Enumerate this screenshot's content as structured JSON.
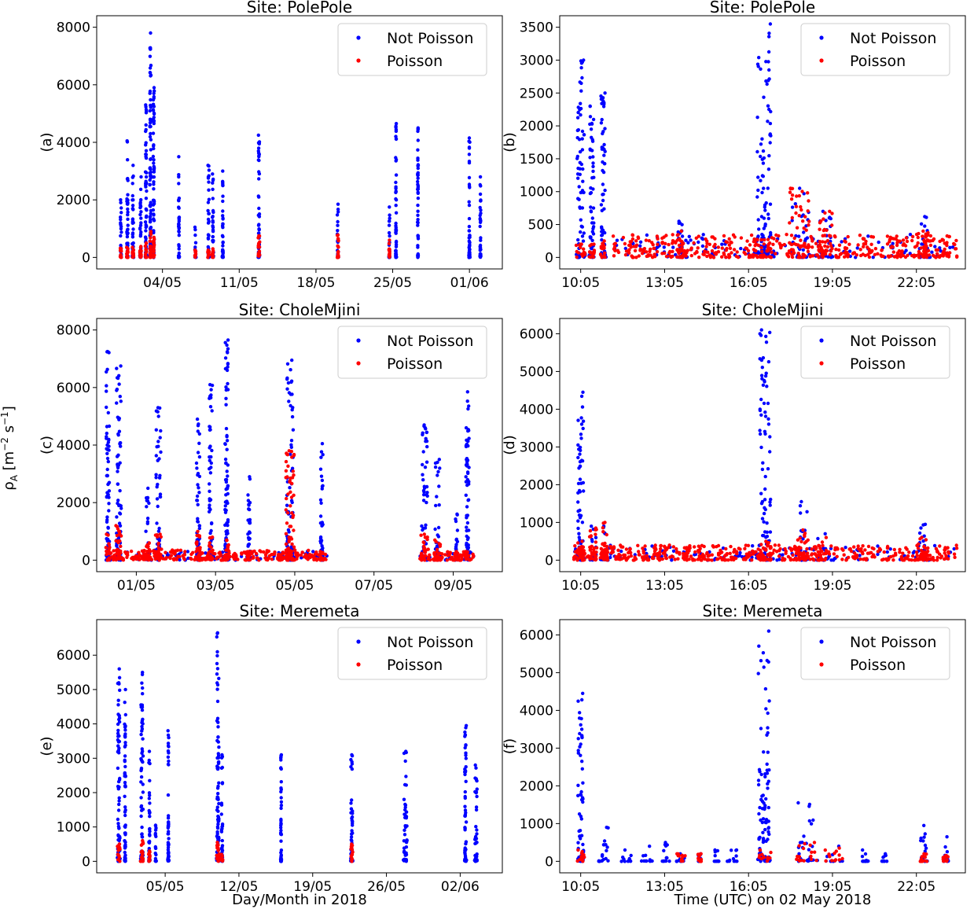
{
  "figure": {
    "shared_ylabel": "ρ_A [m⁻² s⁻¹]",
    "shared_ylabel_parts": {
      "symbol": "ρ",
      "subscript": "A",
      "unit_open": " [m",
      "exp1": "−2",
      "unit_mid": " s",
      "exp2": "−1",
      "unit_close": "]"
    },
    "xlabel_left": "Day/Month in 2018",
    "xlabel_right": "Time (UTC) on 02 May 2018"
  },
  "colors": {
    "not_poisson": "#0000ff",
    "poisson": "#ff0000"
  },
  "chart_data": [
    {
      "id": "a",
      "type": "scatter",
      "title": "Site: PolePole",
      "panel_label": "(a)",
      "xlim": [
        0,
        37
      ],
      "ylim": [
        -400,
        8400
      ],
      "yticks": [
        0,
        2000,
        4000,
        6000,
        8000
      ],
      "xticks": [
        {
          "x": 6,
          "label": "04/05"
        },
        {
          "x": 13,
          "label": "11/05"
        },
        {
          "x": 20,
          "label": "18/05"
        },
        {
          "x": 27,
          "label": "25/05"
        },
        {
          "x": 34,
          "label": "01/06"
        }
      ],
      "legend": {
        "position": "top-right",
        "entries": [
          "Not Poisson",
          "Poisson"
        ]
      },
      "clusters": [
        {
          "x": 2.2,
          "w": 0.1,
          "max": 2000,
          "pmax": 320
        },
        {
          "x": 2.8,
          "w": 0.1,
          "max": 4050,
          "pmax": 350
        },
        {
          "x": 3.3,
          "w": 0.1,
          "max": 3200,
          "pmax": 350
        },
        {
          "x": 4.0,
          "w": 0.1,
          "max": 2800,
          "pmax": 380
        },
        {
          "x": 4.5,
          "w": 0.1,
          "max": 5300,
          "pmax": 500
        },
        {
          "x": 4.9,
          "w": 0.1,
          "max": 7800,
          "pmax": 900
        },
        {
          "x": 5.2,
          "w": 0.1,
          "max": 5900,
          "pmax": 700
        },
        {
          "x": 7.5,
          "w": 0.06,
          "max": 3500,
          "pmax": 0
        },
        {
          "x": 9.0,
          "w": 0.08,
          "max": 1050,
          "pmax": 250
        },
        {
          "x": 10.2,
          "w": 0.1,
          "max": 3200,
          "pmax": 250
        },
        {
          "x": 10.6,
          "w": 0.1,
          "max": 2900,
          "pmax": 300
        },
        {
          "x": 11.5,
          "w": 0.06,
          "max": 3000,
          "pmax": 0
        },
        {
          "x": 14.8,
          "w": 0.1,
          "max": 4250,
          "pmax": 750
        },
        {
          "x": 22.0,
          "w": 0.1,
          "max": 1850,
          "pmax": 780
        },
        {
          "x": 26.7,
          "w": 0.06,
          "max": 1750,
          "pmax": 600
        },
        {
          "x": 27.3,
          "w": 0.06,
          "max": 4650,
          "pmax": 0
        },
        {
          "x": 29.3,
          "w": 0.06,
          "max": 4500,
          "pmax": 0
        },
        {
          "x": 34.0,
          "w": 0.08,
          "max": 4150,
          "pmax": 0
        },
        {
          "x": 35.0,
          "w": 0.06,
          "max": 2800,
          "pmax": 0
        }
      ]
    },
    {
      "id": "b",
      "type": "scatter",
      "title": "Site: PolePole",
      "panel_label": "(b)",
      "xlim": [
        0,
        14.5
      ],
      "ylim": [
        -175,
        3675
      ],
      "yticks": [
        0,
        500,
        1000,
        1500,
        2000,
        2500,
        3000,
        3500
      ],
      "xticks": [
        {
          "x": 0.75,
          "label": "10:05"
        },
        {
          "x": 3.75,
          "label": "13:05"
        },
        {
          "x": 6.75,
          "label": "16:05"
        },
        {
          "x": 9.75,
          "label": "19:05"
        },
        {
          "x": 12.75,
          "label": "22:05"
        }
      ],
      "legend": {
        "position": "top-right",
        "entries": [
          "Not Poisson",
          "Poisson"
        ]
      },
      "clusters": [
        {
          "x": 0.75,
          "w": 0.25,
          "max": 3000,
          "pmax": 200
        },
        {
          "x": 1.15,
          "w": 0.15,
          "max": 2300,
          "pmax": 200
        },
        {
          "x": 1.55,
          "w": 0.15,
          "max": 2500,
          "pmax": 250
        },
        {
          "x": 4.3,
          "w": 0.15,
          "max": 550,
          "pmax": 400
        },
        {
          "x": 7.3,
          "w": 0.5,
          "max": 3550,
          "pmax": 300
        },
        {
          "x": 8.6,
          "w": 0.6,
          "max": 1050,
          "pmax": 1050
        },
        {
          "x": 9.5,
          "w": 0.4,
          "max": 700,
          "pmax": 700
        },
        {
          "x": 13.0,
          "w": 0.3,
          "max": 620,
          "pmax": 400
        }
      ],
      "band": {
        "x0": 1.9,
        "x1": 14.2,
        "pmax": 350
      }
    },
    {
      "id": "c",
      "type": "scatter",
      "title": "Site: CholeMjini",
      "panel_label": "(c)",
      "xlim": [
        0,
        12.8
      ],
      "ylim": [
        -400,
        8400
      ],
      "yticks": [
        0,
        2000,
        4000,
        6000,
        8000
      ],
      "xticks": [
        {
          "x": 1.25,
          "label": "01/05"
        },
        {
          "x": 3.75,
          "label": "03/05"
        },
        {
          "x": 6.25,
          "label": "05/05"
        },
        {
          "x": 8.75,
          "label": "07/05"
        },
        {
          "x": 11.25,
          "label": "09/05"
        }
      ],
      "legend": {
        "position": "top-right",
        "entries": [
          "Not Poisson",
          "Poisson"
        ]
      },
      "clusters": [
        {
          "x": 0.35,
          "w": 0.1,
          "max": 7250,
          "pmax": 900
        },
        {
          "x": 0.7,
          "w": 0.15,
          "max": 6750,
          "pmax": 1200
        },
        {
          "x": 1.6,
          "w": 0.1,
          "max": 2500,
          "pmax": 600
        },
        {
          "x": 1.95,
          "w": 0.15,
          "max": 5300,
          "pmax": 900
        },
        {
          "x": 3.2,
          "w": 0.1,
          "max": 4900,
          "pmax": 1000
        },
        {
          "x": 3.6,
          "w": 0.1,
          "max": 6100,
          "pmax": 800
        },
        {
          "x": 4.1,
          "w": 0.1,
          "max": 7650,
          "pmax": 700
        },
        {
          "x": 4.8,
          "w": 0.08,
          "max": 2900,
          "pmax": 300
        },
        {
          "x": 6.1,
          "w": 0.2,
          "max": 6950,
          "pmax": 3800
        },
        {
          "x": 7.1,
          "w": 0.08,
          "max": 4050,
          "pmax": 300
        },
        {
          "x": 10.35,
          "w": 0.2,
          "max": 4700,
          "pmax": 900
        },
        {
          "x": 10.75,
          "w": 0.15,
          "max": 3500,
          "pmax": 700
        },
        {
          "x": 11.35,
          "w": 0.1,
          "max": 1600,
          "pmax": 300
        },
        {
          "x": 11.7,
          "w": 0.1,
          "max": 5850,
          "pmax": 300
        }
      ],
      "bands": [
        {
          "x0": 0.3,
          "x1": 7.3,
          "pmax": 350
        },
        {
          "x0": 10.2,
          "x1": 11.9,
          "pmax": 300
        }
      ]
    },
    {
      "id": "d",
      "type": "scatter",
      "title": "Site: CholeMjini",
      "panel_label": "(d)",
      "xlim": [
        0,
        14.5
      ],
      "ylim": [
        -305,
        6405
      ],
      "yticks": [
        0,
        1000,
        2000,
        3000,
        4000,
        5000,
        6000
      ],
      "xticks": [
        {
          "x": 0.75,
          "label": "10:05"
        },
        {
          "x": 3.75,
          "label": "13:05"
        },
        {
          "x": 6.75,
          "label": "16:05"
        },
        {
          "x": 9.75,
          "label": "19:05"
        },
        {
          "x": 12.75,
          "label": "22:05"
        }
      ],
      "legend": {
        "position": "top-right",
        "entries": [
          "Not Poisson",
          "Poisson"
        ]
      },
      "clusters": [
        {
          "x": 0.75,
          "w": 0.2,
          "max": 4450,
          "pmax": 500
        },
        {
          "x": 1.2,
          "w": 0.2,
          "max": 900,
          "pmax": 850
        },
        {
          "x": 1.6,
          "w": 0.2,
          "max": 900,
          "pmax": 1000
        },
        {
          "x": 7.35,
          "w": 0.4,
          "max": 6100,
          "pmax": 500
        },
        {
          "x": 8.7,
          "w": 0.3,
          "max": 1550,
          "pmax": 800
        },
        {
          "x": 9.3,
          "w": 0.4,
          "max": 700,
          "pmax": 600
        },
        {
          "x": 13.0,
          "w": 0.3,
          "max": 950,
          "pmax": 600
        }
      ],
      "band": {
        "x0": 0.5,
        "x1": 14.2,
        "pmax": 400
      }
    },
    {
      "id": "e",
      "type": "scatter",
      "title": "Site: Meremeta",
      "panel_label": "(e)",
      "xlim": [
        0,
        38.5
      ],
      "ylim": [
        -335,
        7035
      ],
      "yticks": [
        0,
        1000,
        2000,
        3000,
        4000,
        5000,
        6000
      ],
      "xticks": [
        {
          "x": 6.5,
          "label": "05/05"
        },
        {
          "x": 13.5,
          "label": "12/05"
        },
        {
          "x": 20.5,
          "label": "19/05"
        },
        {
          "x": 27.5,
          "label": "26/05"
        },
        {
          "x": 34.5,
          "label": "02/06"
        }
      ],
      "legend": {
        "position": "top-right",
        "entries": [
          "Not Poisson",
          "Poisson"
        ]
      },
      "clusters": [
        {
          "x": 2.1,
          "w": 0.2,
          "max": 5600,
          "pmax": 500
        },
        {
          "x": 2.7,
          "w": 0.1,
          "max": 5000,
          "pmax": 0
        },
        {
          "x": 4.3,
          "w": 0.2,
          "max": 5500,
          "pmax": 600
        },
        {
          "x": 5.0,
          "w": 0.1,
          "max": 3200,
          "pmax": 300
        },
        {
          "x": 5.6,
          "w": 0.08,
          "max": 1050,
          "pmax": 0
        },
        {
          "x": 6.8,
          "w": 0.08,
          "max": 3800,
          "pmax": 0
        },
        {
          "x": 11.5,
          "w": 0.2,
          "max": 6650,
          "pmax": 550
        },
        {
          "x": 11.9,
          "w": 0.1,
          "max": 3100,
          "pmax": 200
        },
        {
          "x": 17.5,
          "w": 0.06,
          "max": 3100,
          "pmax": 0
        },
        {
          "x": 24.2,
          "w": 0.15,
          "max": 3100,
          "pmax": 500
        },
        {
          "x": 29.3,
          "w": 0.3,
          "max": 3200,
          "pmax": 0
        },
        {
          "x": 35.0,
          "w": 0.15,
          "max": 3950,
          "pmax": 0
        },
        {
          "x": 36.0,
          "w": 0.2,
          "max": 2800,
          "pmax": 0
        }
      ]
    },
    {
      "id": "f",
      "type": "scatter",
      "title": "Site: Meremeta",
      "panel_label": "(f)",
      "xlim": [
        0,
        14.5
      ],
      "ylim": [
        -305,
        6405
      ],
      "yticks": [
        0,
        1000,
        2000,
        3000,
        4000,
        5000,
        6000
      ],
      "xticks": [
        {
          "x": 0.75,
          "label": "10:05"
        },
        {
          "x": 3.75,
          "label": "13:05"
        },
        {
          "x": 6.75,
          "label": "16:05"
        },
        {
          "x": 9.75,
          "label": "19:05"
        },
        {
          "x": 12.75,
          "label": "22:05"
        }
      ],
      "legend": {
        "position": "top-right",
        "entries": [
          "Not Poisson",
          "Poisson"
        ]
      },
      "clusters": [
        {
          "x": 0.75,
          "w": 0.2,
          "max": 4450,
          "pmax": 300
        },
        {
          "x": 1.6,
          "w": 0.3,
          "max": 900,
          "pmax": 0
        },
        {
          "x": 2.4,
          "w": 0.3,
          "max": 300,
          "pmax": 0
        },
        {
          "x": 3.1,
          "w": 0.3,
          "max": 400,
          "pmax": 0
        },
        {
          "x": 3.8,
          "w": 0.2,
          "max": 500,
          "pmax": 0
        },
        {
          "x": 4.35,
          "w": 0.25,
          "max": 200,
          "pmax": 200
        },
        {
          "x": 5.0,
          "w": 0.1,
          "max": 200,
          "pmax": 200
        },
        {
          "x": 5.6,
          "w": 0.15,
          "max": 300,
          "pmax": 0
        },
        {
          "x": 6.2,
          "w": 0.3,
          "max": 300,
          "pmax": 0
        },
        {
          "x": 7.3,
          "w": 0.4,
          "max": 6100,
          "pmax": 300
        },
        {
          "x": 8.8,
          "w": 0.6,
          "max": 1550,
          "pmax": 500
        },
        {
          "x": 9.8,
          "w": 0.5,
          "max": 400,
          "pmax": 350
        },
        {
          "x": 10.9,
          "w": 0.2,
          "max": 300,
          "pmax": 0
        },
        {
          "x": 11.6,
          "w": 0.15,
          "max": 200,
          "pmax": 0
        },
        {
          "x": 13.0,
          "w": 0.2,
          "max": 950,
          "pmax": 200
        },
        {
          "x": 13.8,
          "w": 0.15,
          "max": 650,
          "pmax": 150
        }
      ]
    }
  ]
}
